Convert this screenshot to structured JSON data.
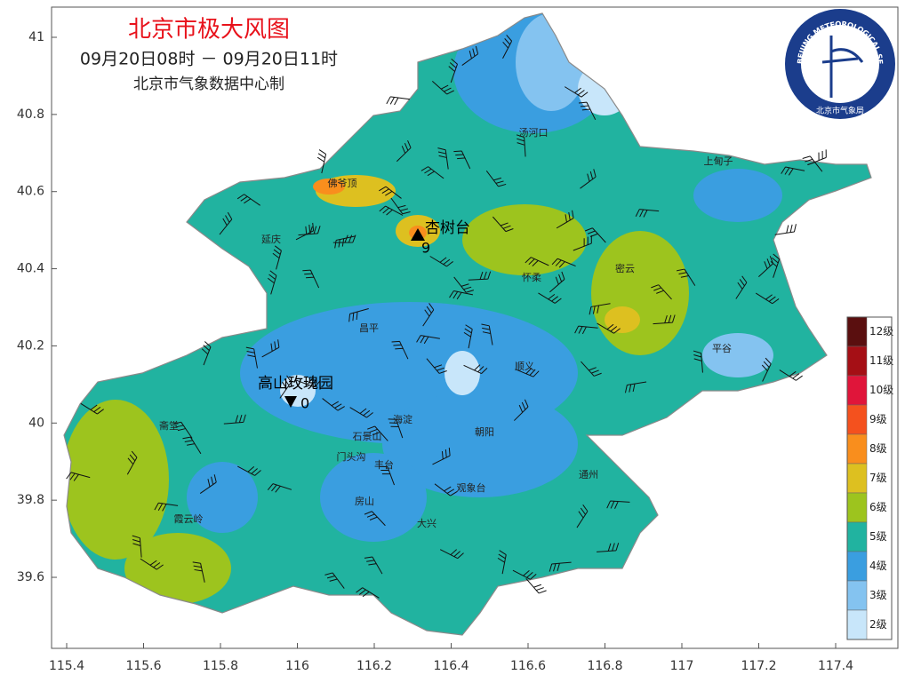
{
  "header": {
    "title": "北京市极大风图",
    "period": "09月20日08时 － 09月20日11时",
    "credit": "北京市气象数据中心制"
  },
  "logo": {
    "ring_text": "BEIJING METEOROLOGICAL SERVICE",
    "inner_text": "北京市气象局"
  },
  "axes": {
    "xticks": [
      115.4,
      115.6,
      115.8,
      116,
      116.2,
      116.4,
      116.6,
      116.8,
      117,
      117.2,
      117.4
    ],
    "yticks": [
      41,
      40.8,
      40.6,
      40.4,
      40.2,
      40,
      39.8,
      39.6
    ]
  },
  "places": [
    "汤河口",
    "上甸子",
    "佛爷顶",
    "延庆",
    "怀柔",
    "密云",
    "昌平",
    "平谷",
    "顺义",
    "斋堂",
    "海淀",
    "石景山",
    "朝阳",
    "门头沟",
    "丰台",
    "通州",
    "观象台",
    "房山",
    "霞云岭",
    "大兴"
  ],
  "stations": [
    {
      "name": "杏树台",
      "level": 9
    },
    {
      "name": "高山玫瑰园",
      "level": 0
    }
  ],
  "legend": {
    "levels": [
      {
        "label": "12级",
        "color": "#5a0f0f"
      },
      {
        "label": "11级",
        "color": "#a50f15"
      },
      {
        "label": "10级",
        "color": "#e0153a"
      },
      {
        "label": "9级",
        "color": "#f4511e"
      },
      {
        "label": "8级",
        "color": "#f98e1d"
      },
      {
        "label": "7级",
        "color": "#ddc020"
      },
      {
        "label": "6级",
        "color": "#9dc41e"
      },
      {
        "label": "5级",
        "color": "#21b3a0"
      },
      {
        "label": "4级",
        "color": "#3a9ee0"
      },
      {
        "label": "3级",
        "color": "#84c3f0"
      },
      {
        "label": "2级",
        "color": "#c8e6fa"
      }
    ]
  }
}
